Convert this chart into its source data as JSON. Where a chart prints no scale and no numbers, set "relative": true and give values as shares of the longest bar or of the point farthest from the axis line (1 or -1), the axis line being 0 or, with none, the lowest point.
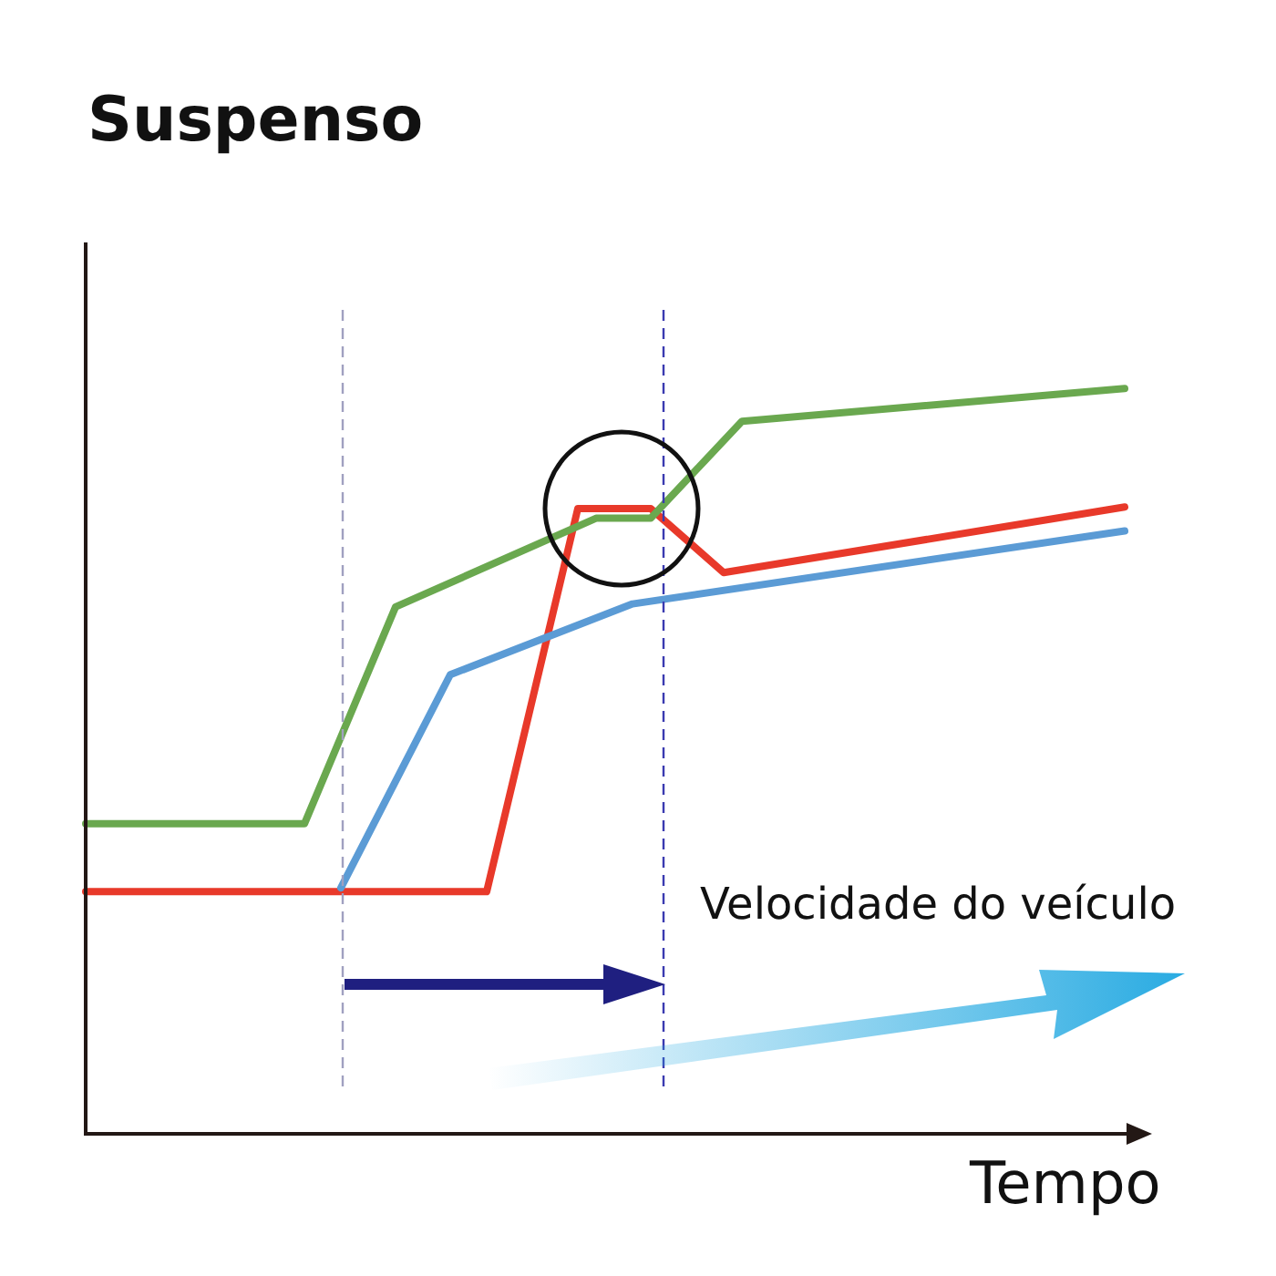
{
  "chart_data": {
    "type": "line",
    "title": "Suspenso",
    "xlabel": "Tempo",
    "relative": true,
    "marker": "none",
    "line_style": "solid",
    "annotations": [
      "Velocidade do veículo"
    ],
    "categories": [
      null,
      null,
      null,
      null,
      null,
      null,
      null,
      null,
      null,
      null,
      null,
      null,
      null,
      null,
      null,
      null,
      null,
      null,
      null,
      null,
      null,
      null,
      null,
      null,
      null,
      null,
      null,
      null,
      null,
      null,
      null,
      null,
      null,
      null,
      null,
      null,
      null,
      null,
      null,
      null,
      null,
      null,
      null,
      null,
      null,
      null,
      null,
      null,
      null,
      null,
      null,
      null,
      null,
      null,
      null,
      null,
      null,
      null
    ],
    "series": [
      {
        "color": "#6aa84f",
        "values": [
          0.416,
          null,
          null,
          null,
          null,
          null,
          null,
          null,
          null,
          null,
          null,
          null,
          0.416,
          null,
          null,
          null,
          null,
          0.707,
          null,
          null,
          null,
          null,
          null,
          null,
          null,
          null,
          null,
          null,
          0.826,
          null,
          null,
          0.826,
          null,
          null,
          null,
          null,
          0.956,
          null,
          null,
          null,
          null,
          null,
          null,
          null,
          null,
          null,
          null,
          null,
          null,
          null,
          null,
          null,
          null,
          null,
          null,
          null,
          null,
          1
        ]
      },
      {
        "color": "#5b9bd5",
        "values": [
          null,
          null,
          null,
          null,
          null,
          null,
          null,
          null,
          null,
          null,
          null,
          null,
          null,
          null,
          0.33,
          null,
          null,
          null,
          null,
          null,
          0.616,
          null,
          null,
          null,
          null,
          null,
          null,
          null,
          null,
          null,
          0.711,
          null,
          null,
          null,
          null,
          null,
          null,
          null,
          null,
          null,
          null,
          null,
          null,
          null,
          null,
          null,
          null,
          null,
          null,
          null,
          null,
          null,
          null,
          null,
          null,
          null,
          null,
          0.809
        ]
      },
      {
        "color": "#e8392a",
        "values": [
          0.325,
          null,
          null,
          null,
          null,
          null,
          null,
          null,
          null,
          null,
          null,
          null,
          null,
          null,
          null,
          null,
          null,
          null,
          null,
          null,
          null,
          null,
          0.325,
          null,
          null,
          null,
          null,
          0.839,
          null,
          null,
          null,
          0.839,
          null,
          null,
          null,
          0.753,
          null,
          null,
          null,
          null,
          null,
          null,
          null,
          null,
          null,
          null,
          null,
          null,
          null,
          null,
          null,
          null,
          null,
          null,
          null,
          null,
          null,
          0.841
        ]
      }
    ]
  }
}
